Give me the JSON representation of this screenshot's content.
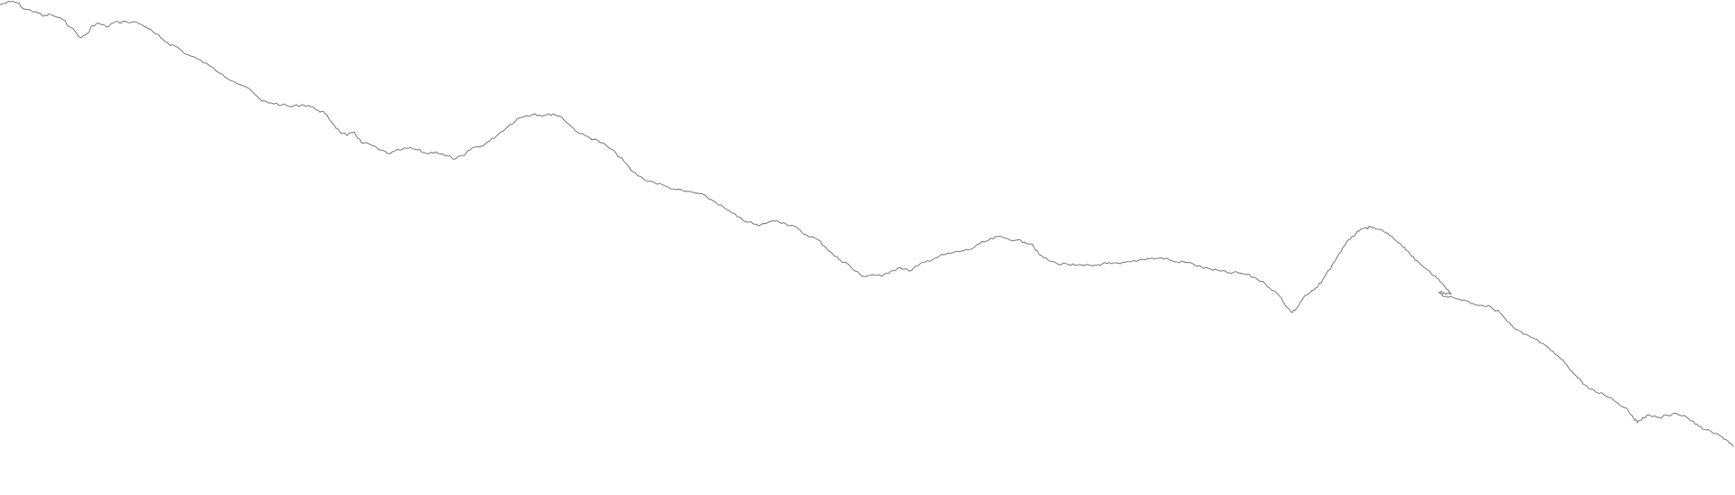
{
  "drawing": {
    "stroke_color": "#6b6b6b",
    "background_color": "#ffffff"
  }
}
